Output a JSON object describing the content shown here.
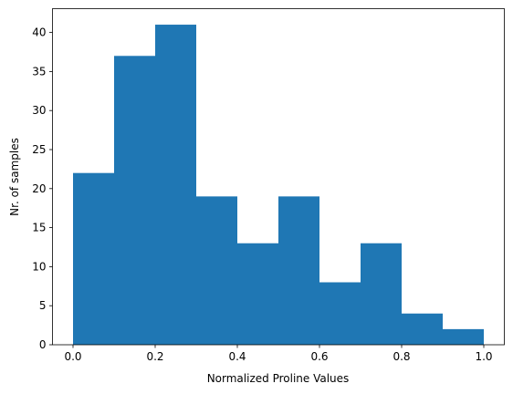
{
  "chart_data": {
    "type": "histogram",
    "xlabel": "Normalized Proline Values",
    "ylabel": "Nr. of samples",
    "bins": [
      0,
      0.1,
      0.2,
      0.3,
      0.4,
      0.5,
      0.6,
      0.7,
      0.8,
      0.9,
      1.0
    ],
    "values": [
      22,
      37,
      41,
      19,
      13,
      19,
      8,
      13,
      4,
      2
    ],
    "color": "#1f77b4",
    "xlim": [
      -0.05,
      1.05
    ],
    "xticks": [
      {
        "value": 0,
        "label": "0.0"
      },
      0.2,
      0.4,
      0.6,
      0.8,
      {
        "value": 1,
        "label": "1.0"
      }
    ],
    "ylim": [
      0,
      43.05
    ],
    "yticks": [
      0,
      5,
      10,
      15,
      20,
      25,
      30,
      35,
      40
    ]
  }
}
